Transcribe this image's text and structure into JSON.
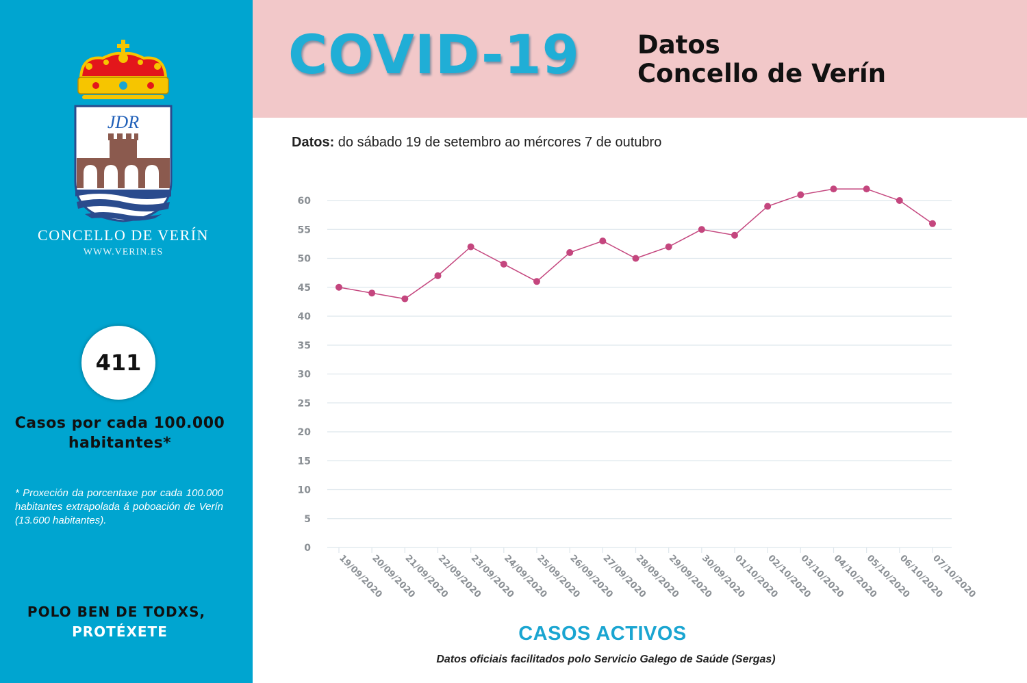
{
  "sidebar": {
    "council_name": "CONCELLO DE VERÍN",
    "website": "WWW.VERIN.ES",
    "crest_monogram": "JDR",
    "rate_value": "411",
    "rate_label": "Casos por cada 100.000 habitantes*",
    "footnote": "* Proxeción da porcentaxe por cada 100.000 habitantes extrapolada á poboación de Verín (13.600 habitantes).",
    "slogan_line1": "POLO BEN DE TODXS,",
    "slogan_line2": "PROTÉXETE"
  },
  "header": {
    "title": "COVID-19",
    "subtitle_line1": "Datos",
    "subtitle_line2": "Concello de Verín"
  },
  "range": {
    "label": "Datos:",
    "text": "do sábado 19 de setembro ao mércores 7 de outubro"
  },
  "colors": {
    "sidebar": "#00a5d0",
    "header": "#f2c8c9",
    "title": "#20aed6",
    "line": "#c4467e",
    "grid": "#dde6ec",
    "axis_text": "#8a8f94"
  },
  "chart_data": {
    "type": "line",
    "title": "CASOS ACTIVOS",
    "source": "Datos oficiais facilitados polo Servicio Galego de Saúde (Sergas)",
    "categories": [
      "19/09/2020",
      "20/09/2020",
      "21/09/2020",
      "22/09/2020",
      "23/09/2020",
      "24/09/2020",
      "25/09/2020",
      "26/09/2020",
      "27/09/2020",
      "28/09/2020",
      "29/09/2020",
      "30/09/2020",
      "01/10/2020",
      "02/10/2020",
      "03/10/2020",
      "04/10/2020",
      "05/10/2020",
      "06/10/2020",
      "07/10/2020"
    ],
    "values": [
      45,
      44,
      43,
      47,
      52,
      49,
      46,
      51,
      53,
      50,
      52,
      55,
      54,
      59,
      61,
      62,
      62,
      60,
      56
    ],
    "ylim": [
      0,
      60
    ],
    "yticks": [
      0,
      5,
      10,
      15,
      20,
      25,
      30,
      35,
      40,
      45,
      50,
      55,
      60
    ],
    "grid": true,
    "legend": "none"
  }
}
